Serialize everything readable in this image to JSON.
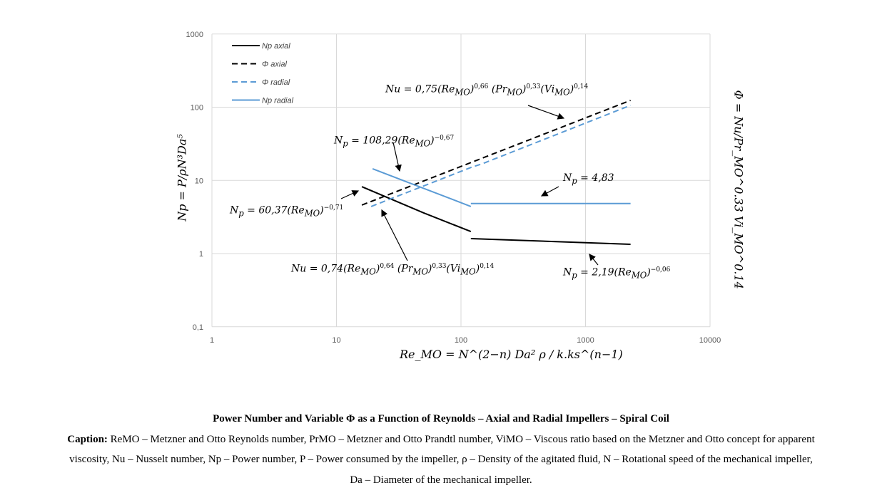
{
  "chart_data": {
    "type": "line",
    "xscale": "log",
    "yscale": "log",
    "xlim": [
      1,
      10000
    ],
    "ylim": [
      0.1,
      1000
    ],
    "xticks": [
      "1",
      "10",
      "100",
      "1000",
      "10000"
    ],
    "yticks": [
      "0,1",
      "1",
      "10",
      "100",
      "1000"
    ],
    "grid": true,
    "legend_position": "top-left",
    "series": [
      {
        "name": "Np axial",
        "color": "#000000",
        "dash": false,
        "segments": [
          [
            [
              16,
              8.2
            ],
            [
              50,
              3.6
            ],
            [
              120,
              2.0
            ]
          ],
          [
            [
              120,
              1.6
            ],
            [
              2300,
              1.34
            ]
          ]
        ]
      },
      {
        "name": "Φ axial",
        "color": "#000000",
        "dash": true,
        "segments": [
          [
            [
              16,
              4.6
            ],
            [
              2300,
              124
            ]
          ]
        ]
      },
      {
        "name": "Φ radial",
        "color": "#5B9BD5",
        "dash": true,
        "segments": [
          [
            [
              19,
              4.4
            ],
            [
              120,
              15
            ],
            [
              150,
              17
            ],
            [
              2300,
              106
            ]
          ]
        ]
      },
      {
        "name": "Np radial",
        "color": "#5B9BD5",
        "dash": false,
        "segments": [
          [
            [
              19.5,
              14.4
            ],
            [
              120,
              4.4
            ]
          ],
          [
            [
              120,
              4.83
            ],
            [
              2300,
              4.83
            ]
          ]
        ]
      }
    ],
    "ylabel": "Np = P/ρN³Da⁵",
    "ylabel_right": "Φ = Nu/Pr_MO^0.33 Vi_MO^0.14",
    "xlabel": "Re_MO = N^(2−n) Da² ρ / k.ks^(n−1)",
    "annotations": {
      "nu_axial": {
        "base": "Nu = 0,75(Re",
        "sub": "MO",
        "e1": "0,66",
        "mid": " (Pr",
        "e2": "0,33",
        "v": "(Vi",
        "e3": "0,14"
      },
      "np_radial": {
        "base": "N",
        "sub": "p",
        "rest": " = 108,29(Re",
        "sub2": "MO",
        "exp": "−0,67"
      },
      "np_axial": {
        "base": "N",
        "sub": "p",
        "rest": " = 60,37(Re",
        "sub2": "MO",
        "exp": "−0,71"
      },
      "nu_radial": {
        "base": "Nu = 0,74(Re",
        "sub": "MO",
        "e1": "0,64",
        "mid": " (Pr",
        "e2": "0,33",
        "v": "(Vi",
        "e3": "0,14"
      },
      "np_const": {
        "base": "N",
        "sub": "p",
        "rest": " = 4,83"
      },
      "np_axial2": {
        "base": "N",
        "sub": "p",
        "rest": " = 2,19(Re",
        "sub2": "MO",
        "exp": "−0,06"
      }
    }
  },
  "caption": {
    "title": "Power Number and Variable Φ as a Function of Reynolds – Axial and Radial Impellers – Spiral Coil",
    "label": "Caption:",
    "line1": " ReMO – Metzner and Otto Reynolds number, PrMO – Metzner and Otto Prandtl number, ViMO – Viscous ratio based on the Metzner and Otto concept for apparent",
    "line2": "viscosity, Nu – Nusselt number, Np – Power number, P – Power consumed by the impeller, ρ – Density of the agitated fluid, N – Rotational speed of the mechanical impeller,",
    "line3": "Da – Diameter of the mechanical impeller."
  }
}
